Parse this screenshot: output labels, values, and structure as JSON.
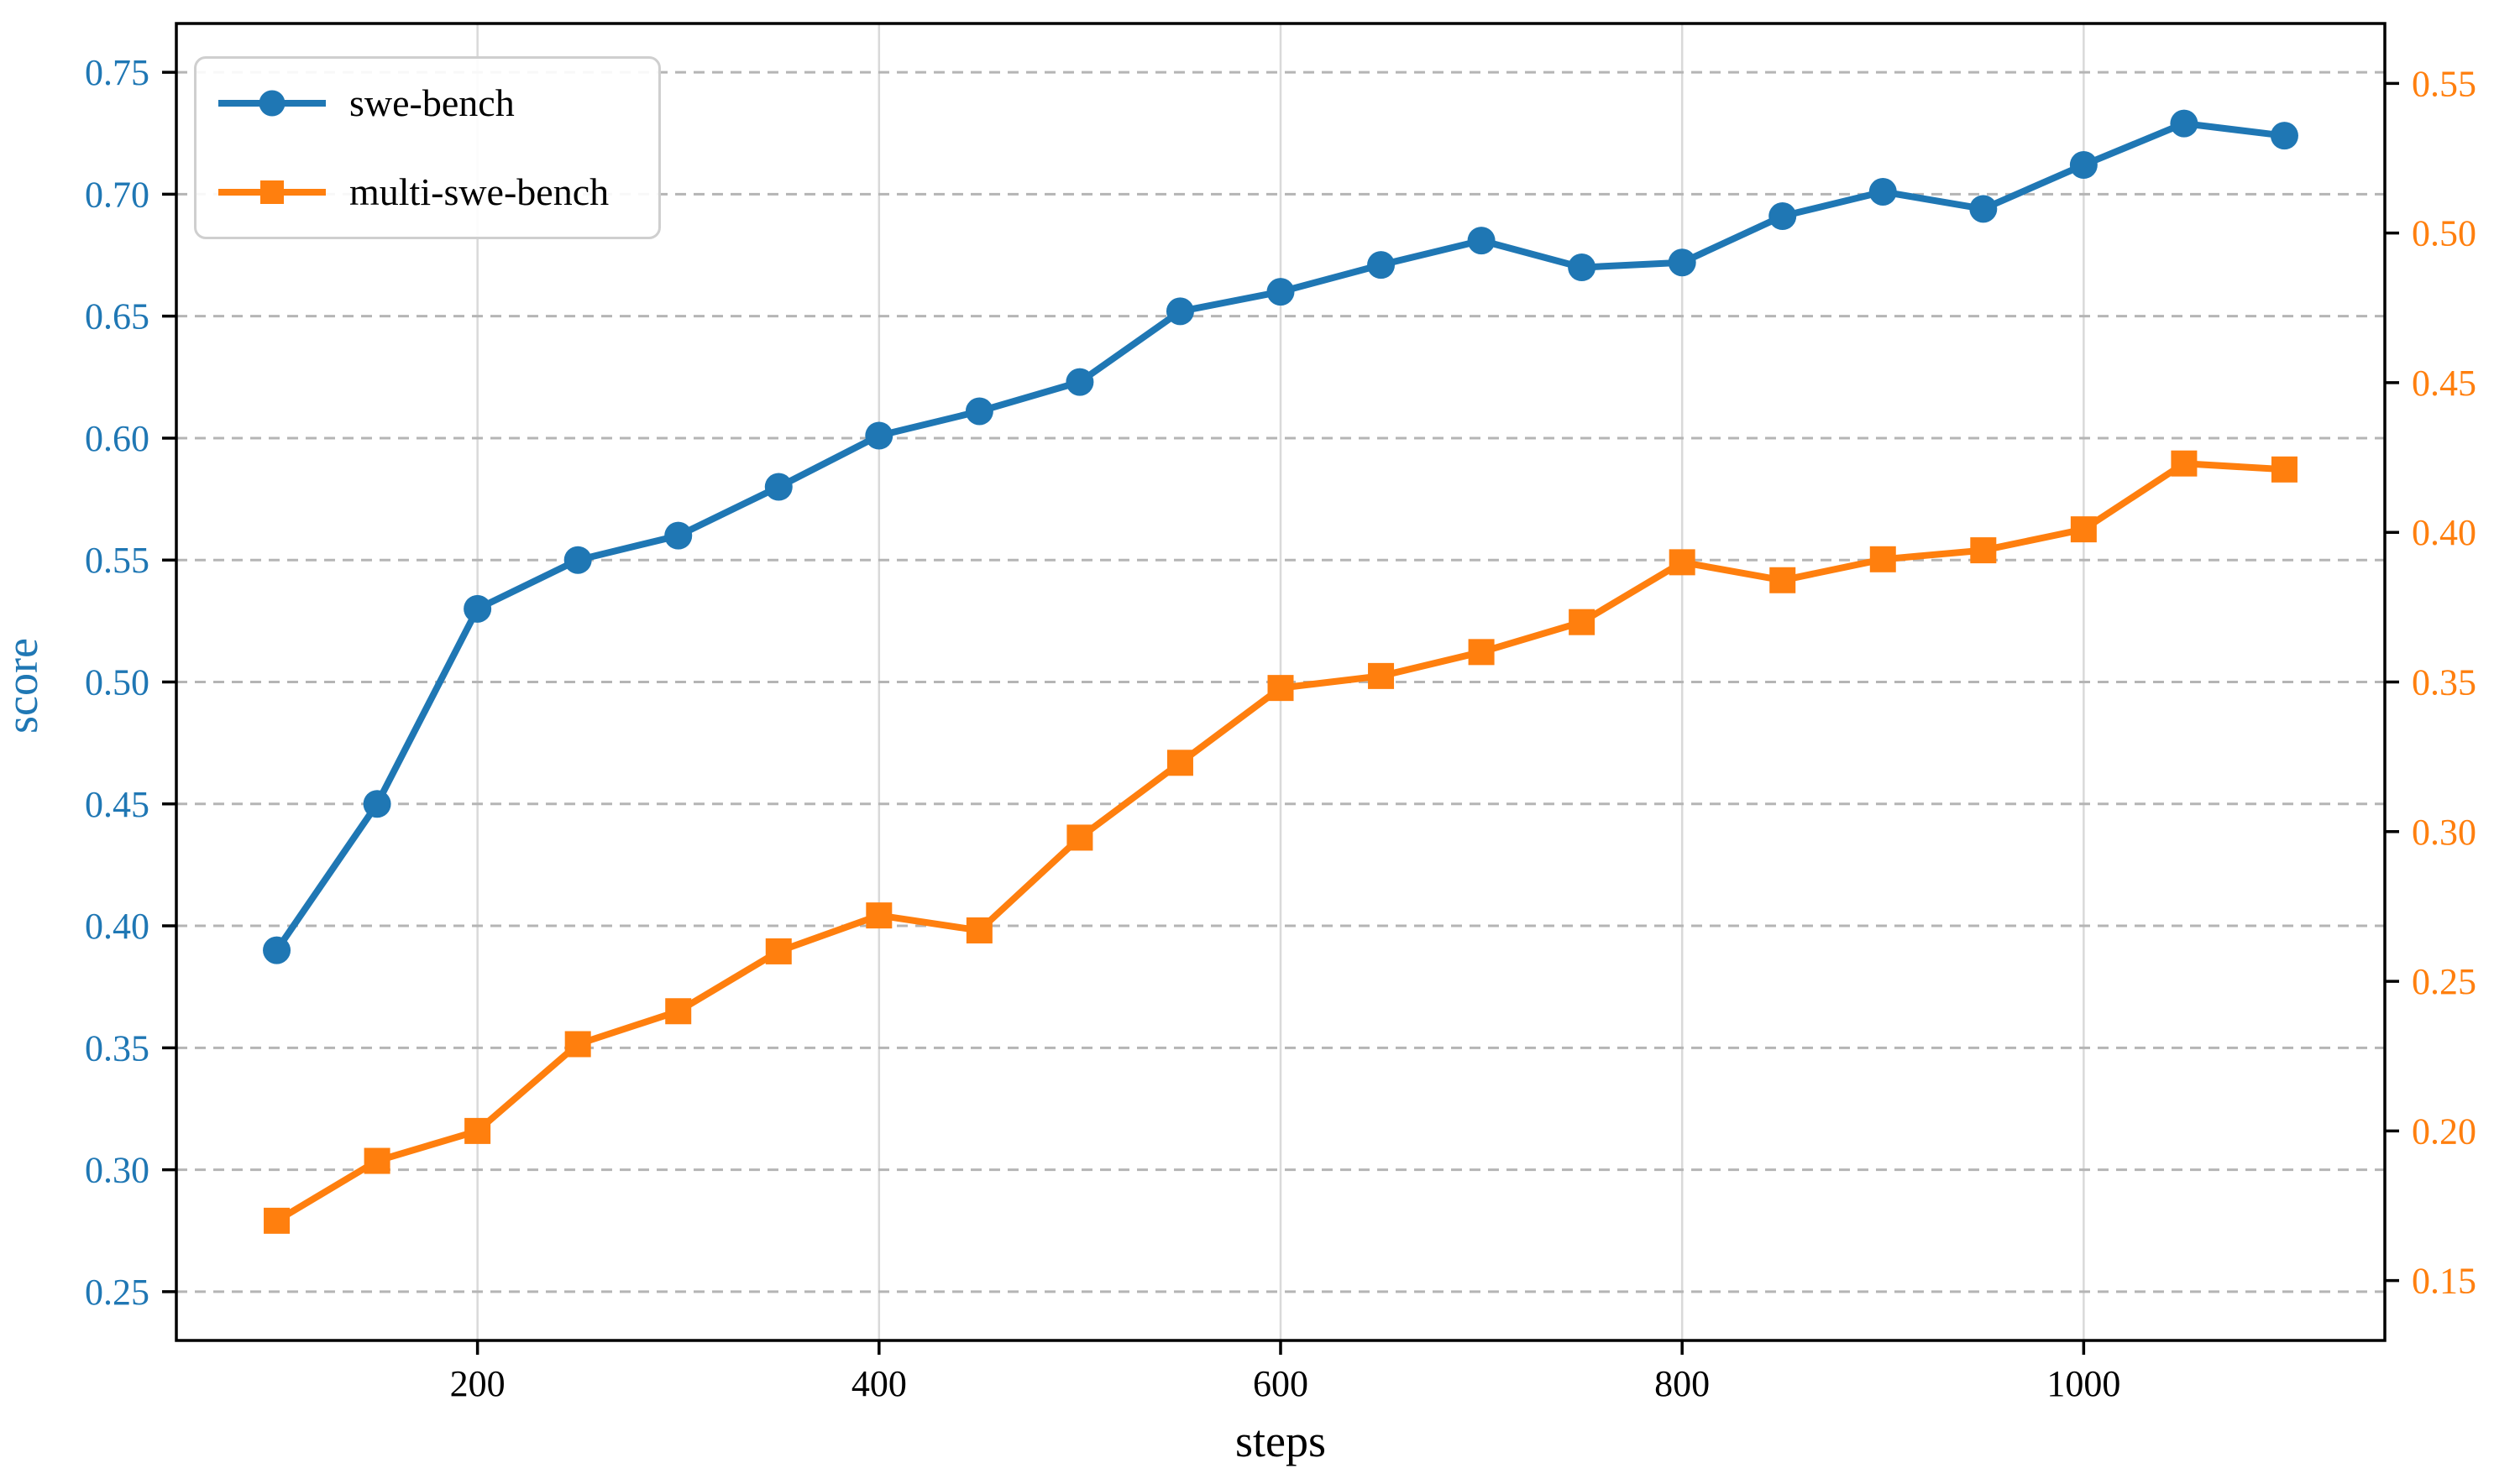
{
  "chart_data": {
    "type": "line",
    "title": "",
    "xlabel": "steps",
    "ylabel": "score",
    "x": [
      100,
      150,
      200,
      250,
      300,
      350,
      400,
      450,
      500,
      550,
      600,
      650,
      700,
      750,
      800,
      850,
      900,
      950,
      1000,
      1050,
      1100
    ],
    "series": [
      {
        "name": "swe-bench",
        "yaxis": "left",
        "color": "#1f77b4",
        "marker": "circle",
        "values": [
          0.39,
          0.45,
          0.53,
          0.55,
          0.56,
          0.58,
          0.601,
          0.611,
          0.623,
          0.652,
          0.66,
          0.671,
          0.681,
          0.67,
          0.672,
          0.691,
          0.701,
          0.694,
          0.712,
          0.729,
          0.724
        ]
      },
      {
        "name": "multi-swe-bench",
        "yaxis": "right",
        "color": "#ff7f0e",
        "marker": "square",
        "values": [
          0.17,
          0.19,
          0.2,
          0.229,
          0.24,
          0.26,
          0.272,
          0.267,
          0.298,
          0.323,
          0.348,
          0.352,
          0.36,
          0.37,
          0.39,
          0.384,
          0.391,
          0.394,
          0.401,
          0.423,
          0.421
        ]
      }
    ],
    "xlim": [
      50,
      1150
    ],
    "ylim_left": [
      0.23,
      0.77
    ],
    "ylim_right": [
      0.13,
      0.57
    ],
    "xticks": [
      200,
      400,
      600,
      800,
      1000
    ],
    "yticks_left": [
      0.25,
      0.3,
      0.35,
      0.4,
      0.45,
      0.5,
      0.55,
      0.6,
      0.65,
      0.7,
      0.75
    ],
    "yticks_right": [
      0.15,
      0.2,
      0.25,
      0.3,
      0.35,
      0.4,
      0.45,
      0.5,
      0.55
    ],
    "grid": {
      "horizontal": "dashed",
      "vertical": "solid"
    },
    "legend": {
      "position": "upper-left",
      "items": [
        "swe-bench",
        "multi-swe-bench"
      ]
    },
    "colors": {
      "left_axis_labels": "#1f77b4",
      "right_axis_labels": "#ff7f0e",
      "grid_horizontal": "#b5b5b5",
      "grid_vertical": "#d9d9d9",
      "spine": "#000000",
      "tick": "#000000",
      "background": "#ffffff",
      "legend_border": "#cfcfcf"
    }
  }
}
